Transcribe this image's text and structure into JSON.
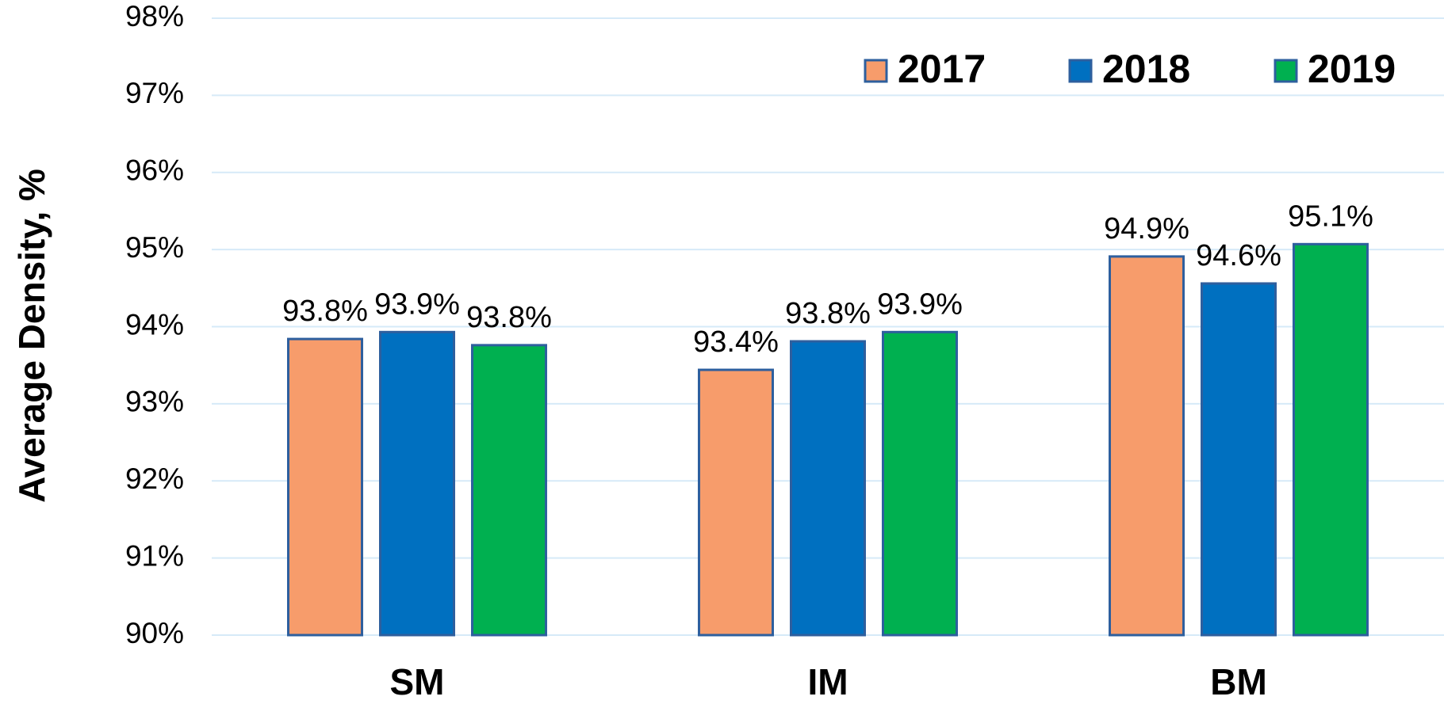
{
  "chart_data": {
    "type": "bar",
    "y_label": "Average Density, %",
    "categories": [
      "SM",
      "IM",
      "BM"
    ],
    "series": [
      {
        "name": "2017",
        "color": "#f79c6b",
        "values": [
          93.84,
          93.44,
          94.91
        ],
        "value_labels": [
          "93.8%",
          "93.4%",
          "94.9%"
        ]
      },
      {
        "name": "2018",
        "color": "#0070c0",
        "values": [
          93.93,
          93.81,
          94.56
        ],
        "value_labels": [
          "93.9%",
          "93.8%",
          "94.6%"
        ]
      },
      {
        "name": "2019",
        "color": "#00b050",
        "values": [
          93.76,
          93.93,
          95.07
        ],
        "value_labels": [
          "93.8%",
          "93.9%",
          "95.1%"
        ]
      }
    ],
    "ylim": [
      90,
      98
    ],
    "yticks": [
      {
        "value": 90,
        "label": "90%"
      },
      {
        "value": 91,
        "label": "91%"
      },
      {
        "value": 92,
        "label": "92%"
      },
      {
        "value": 93,
        "label": "93%"
      },
      {
        "value": 94,
        "label": "94%"
      },
      {
        "value": 95,
        "label": "95%"
      },
      {
        "value": 96,
        "label": "96%"
      },
      {
        "value": 97,
        "label": "97%"
      },
      {
        "value": 98,
        "label": "98%"
      }
    ],
    "grid": true,
    "legend": "top-right"
  }
}
